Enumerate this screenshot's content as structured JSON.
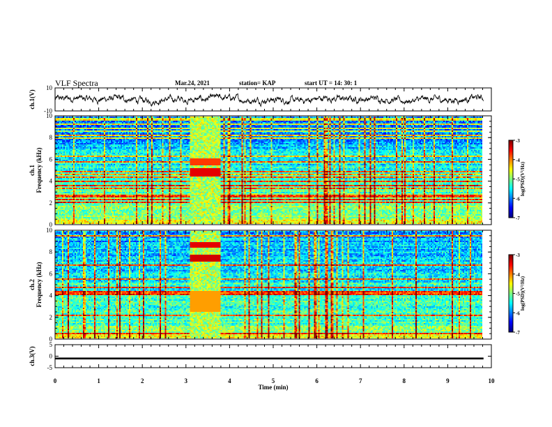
{
  "header": {
    "title": "VLF Spectra",
    "date": "Mar.24, 2021",
    "station": "station= KAP",
    "start": "start  UT  =   14: 30: 1"
  },
  "chart_data": [
    {
      "type": "line",
      "panel": "ch1-waveform",
      "ylabel": "ch.1(V)",
      "ylim": [
        -10,
        10
      ],
      "yticks": [
        "10",
        "-10"
      ],
      "x_range_min": [
        0,
        9.82
      ],
      "trace_description_level": "noisy",
      "series": [
        {
          "values_summary": {
            "mean": 0,
            "amplitude": 3.5
          }
        }
      ]
    },
    {
      "type": "heatmap",
      "panel": "ch1-spectrogram",
      "ylabel": "ch.1\nFrequency  (kHz)",
      "ylim": [
        0,
        10
      ],
      "yticks": [
        "0",
        "2",
        "4",
        "6",
        "8",
        "10"
      ],
      "x_range_min": [
        0,
        9.82
      ],
      "burst_interval_min": [
        3.1,
        3.8
      ],
      "colorbar": {
        "label": "log(PSD)(V²/Hz)",
        "range": [
          -7,
          -3
        ],
        "ticks": [
          "-3",
          "-4",
          "-5",
          "-6",
          "-7"
        ]
      }
    },
    {
      "type": "heatmap",
      "panel": "ch2-spectrogram",
      "ylabel": "ch.2\nFrequency  (kHz)",
      "ylim": [
        0,
        10
      ],
      "yticks": [
        "0",
        "2",
        "4",
        "6",
        "8",
        "10"
      ],
      "x_range_min": [
        0,
        9.82
      ],
      "burst_interval_min": [
        3.1,
        3.8
      ],
      "colorbar": {
        "label": "log(PSD)(V²/Hz)",
        "range": [
          -7,
          -3
        ],
        "ticks": [
          "-3",
          "-4",
          "-5",
          "-6",
          "-7"
        ]
      }
    },
    {
      "type": "line",
      "panel": "ch3-waveform",
      "ylabel": "ch.3(V)",
      "ylim": [
        -5,
        5
      ],
      "yticks": [
        "5",
        "0",
        "-5"
      ],
      "x_range_min": [
        0,
        9.82
      ],
      "series": [
        {
          "values_summary": {
            "mean": -1,
            "thickness_V": 0.8
          }
        }
      ]
    }
  ],
  "xaxis": {
    "label": "Time  (min)",
    "ticks": [
      "0",
      "1",
      "2",
      "3",
      "4",
      "5",
      "6",
      "7",
      "8",
      "9",
      "10"
    ],
    "xlim": [
      0,
      10
    ]
  },
  "colors": {
    "axis": "#000000",
    "trace": "#000000",
    "jet_low": "#00007f",
    "jet_high": "#7f0000"
  }
}
